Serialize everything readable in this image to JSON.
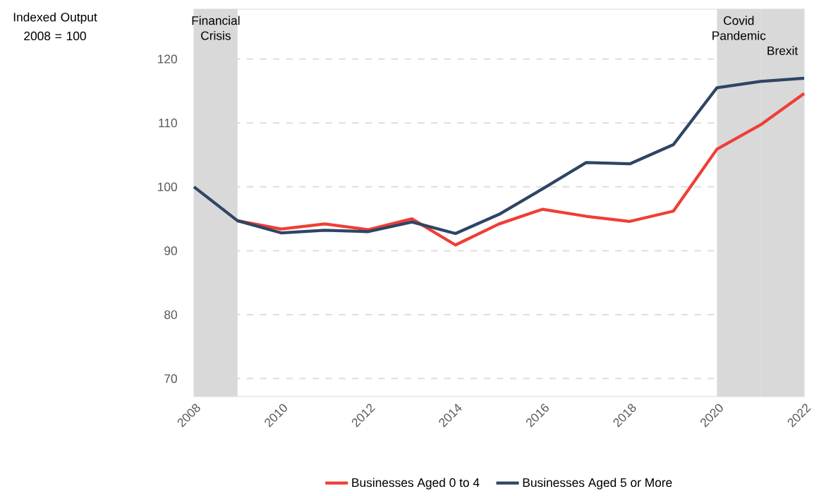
{
  "chart_data": {
    "type": "line",
    "ylabel": "Indexed Output 2008 = 100",
    "x": [
      2008,
      2009,
      2010,
      2011,
      2012,
      2013,
      2014,
      2015,
      2016,
      2017,
      2018,
      2019,
      2020,
      2021,
      2022
    ],
    "series": [
      {
        "name": "Businesses Aged 0 to 4",
        "color": "#ef3e36",
        "values": [
          null,
          94.7,
          93.4,
          94.2,
          93.3,
          95.0,
          90.9,
          94.2,
          96.5,
          95.4,
          94.6,
          96.2,
          105.9,
          109.7,
          114.6
        ]
      },
      {
        "name": "Businesses Aged 5 or More",
        "color": "#2e4564",
        "values": [
          100,
          94.7,
          92.8,
          93.2,
          93.0,
          94.5,
          92.7,
          95.7,
          99.7,
          103.8,
          103.6,
          106.6,
          115.5,
          116.5,
          117.0
        ]
      }
    ],
    "xlim": [
      2008,
      2022
    ],
    "ylim": [
      67.2,
      127.8
    ],
    "xticks": [
      2008,
      2010,
      2012,
      2014,
      2016,
      2018,
      2020,
      2022
    ],
    "yticks": [
      70,
      80,
      90,
      100,
      110,
      120
    ],
    "bands": [
      {
        "axis": "x",
        "from": 2008,
        "to": 2009,
        "label": "Financial Crisis",
        "color": "#d9d9d9"
      },
      {
        "axis": "x",
        "from": 2020,
        "to": 2021,
        "label": "Covid Pandemic",
        "color": "#d9d9d9"
      },
      {
        "axis": "x",
        "from": 2021,
        "to": 2022,
        "label": "Brexit",
        "color": "#d9d9d9"
      }
    ],
    "grid": "y",
    "legend": "bottom",
    "line_style": "solid",
    "marker": "none"
  }
}
